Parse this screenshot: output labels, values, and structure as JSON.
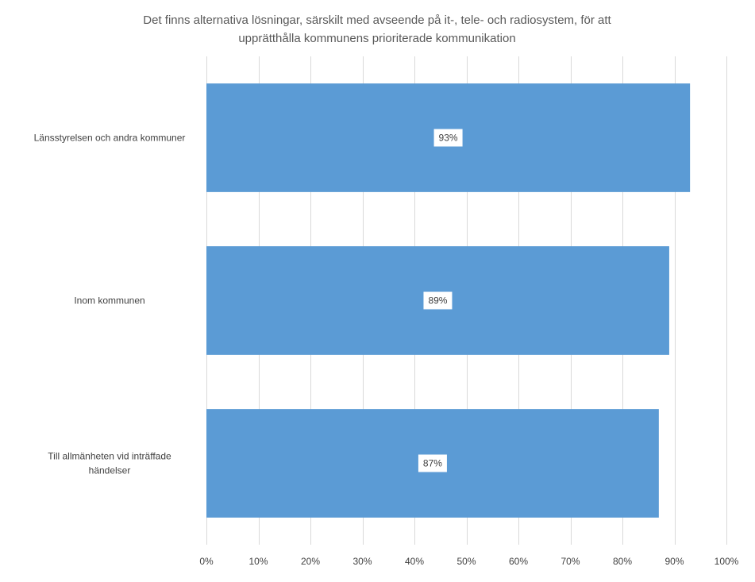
{
  "chart_data": {
    "type": "bar",
    "orientation": "horizontal",
    "title_lines": [
      "Det finns alternativa lösningar, särskilt med avseende på it-, tele- och radiosystem, för att",
      "upprätthålla kommunens prioriterade kommunikation"
    ],
    "categories": [
      [
        "Länsstyrelsen och andra kommuner"
      ],
      [
        "Inom kommunen"
      ],
      [
        "Till allmänheten vid inträffade",
        "händelser"
      ]
    ],
    "values": [
      0.93,
      0.89,
      0.87
    ],
    "data_labels": [
      "93%",
      "89%",
      "87%"
    ],
    "xlim": [
      0,
      1
    ],
    "x_ticks": [
      0,
      0.1,
      0.2,
      0.3,
      0.4,
      0.5,
      0.6,
      0.7,
      0.8,
      0.9,
      1.0
    ],
    "x_tick_labels": [
      "0%",
      "10%",
      "20%",
      "30%",
      "40%",
      "50%",
      "60%",
      "70%",
      "80%",
      "90%",
      "100%"
    ],
    "grid": true,
    "legend": "none",
    "bar_color": "#5b9bd5"
  }
}
